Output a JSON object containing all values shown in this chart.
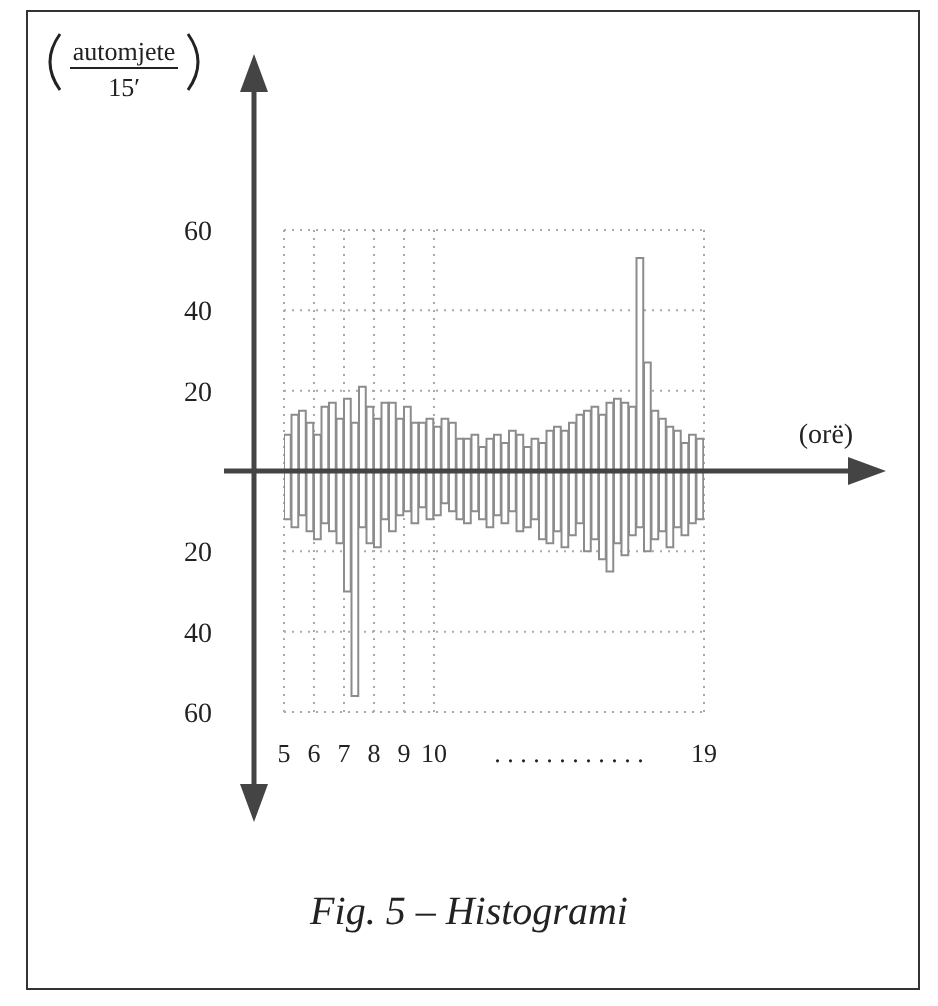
{
  "chart_data": {
    "type": "bar",
    "title": "Fig. 5 – Histogrami",
    "xlabel": "(orë)",
    "annotations": [
      "automjete",
      "15′",
      ". . . . . . . . . . . ."
    ],
    "x": [
      5.125,
      5.375,
      5.625,
      5.875,
      6.125,
      6.375,
      6.625,
      6.875,
      7.125,
      7.375,
      7.625,
      7.875,
      8.125,
      8.375,
      8.625,
      8.875,
      9.125,
      9.375,
      9.625,
      9.875,
      10.125,
      10.375,
      10.625,
      10.875,
      11.125,
      11.375,
      11.625,
      11.875,
      12.125,
      12.375,
      12.625,
      12.875,
      13.125,
      13.375,
      13.625,
      13.875,
      14.125,
      14.375,
      14.625,
      14.875,
      15.125,
      15.375,
      15.625,
      15.875,
      16.125,
      16.375,
      16.625,
      16.875,
      17.125,
      17.375,
      17.625,
      17.875,
      18.125,
      18.375,
      18.625,
      18.875
    ],
    "stacked": true,
    "series": [
      {
        "color": "#8c8c8c",
        "values": [
          9,
          14,
          15,
          12,
          9,
          16,
          17,
          13,
          18,
          12,
          21,
          16,
          13,
          17,
          17,
          13,
          16,
          12,
          12,
          13,
          11,
          13,
          12,
          8,
          8,
          9,
          6,
          8,
          9,
          7,
          10,
          9,
          6,
          8,
          7,
          10,
          11,
          10,
          12,
          14,
          15,
          16,
          14,
          17,
          18,
          17,
          16,
          53,
          27,
          15,
          13,
          11,
          10,
          7,
          9,
          8
        ]
      },
      {
        "color": "#8c8c8c",
        "values": [
          -12,
          -14,
          -11,
          -15,
          -17,
          -13,
          -15,
          -18,
          -30,
          -56,
          -14,
          -18,
          -19,
          -12,
          -15,
          -11,
          -10,
          -13,
          -9,
          -12,
          -11,
          -8,
          -10,
          -12,
          -13,
          -10,
          -12,
          -14,
          -11,
          -13,
          -10,
          -15,
          -14,
          -12,
          -17,
          -18,
          -15,
          -19,
          -16,
          -13,
          -20,
          -17,
          -22,
          -25,
          -18,
          -21,
          -16,
          -14,
          -20,
          -17,
          -15,
          -19,
          -14,
          -16,
          -13,
          -12
        ]
      }
    ],
    "xlim": [
      5,
      19
    ],
    "xticks": [
      5,
      6,
      7,
      8,
      9,
      10,
      19
    ],
    "ylim": [
      -60,
      60
    ],
    "yticks": [
      {
        "value": -60,
        "label": "60"
      },
      {
        "value": -40,
        "label": "40"
      },
      {
        "value": -20,
        "label": "20"
      },
      20,
      40,
      60
    ],
    "grid": true
  }
}
